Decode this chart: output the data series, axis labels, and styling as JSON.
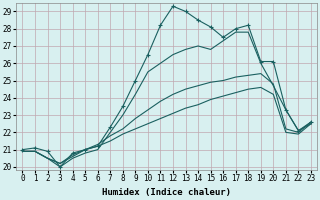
{
  "xlabel": "Humidex (Indice chaleur)",
  "bg_color": "#cce8e8",
  "plot_bg_color": "#d8f0f0",
  "grid_color": "#b8c8c0",
  "line_color": "#1a6060",
  "xlim": [
    -0.5,
    23.5
  ],
  "ylim": [
    19.85,
    29.5
  ],
  "xticks": [
    0,
    1,
    2,
    3,
    4,
    5,
    6,
    7,
    8,
    9,
    10,
    11,
    12,
    13,
    14,
    15,
    16,
    17,
    18,
    19,
    20,
    21,
    22,
    23
  ],
  "yticks": [
    20,
    21,
    22,
    23,
    24,
    25,
    26,
    27,
    28,
    29
  ],
  "series": [
    {
      "x": [
        0,
        1,
        2,
        3,
        4,
        5,
        6,
        7,
        8,
        9,
        10,
        11,
        12,
        13,
        14,
        15,
        16,
        17,
        18,
        19,
        20,
        21,
        22,
        23
      ],
      "y": [
        21.0,
        21.1,
        20.9,
        20.0,
        20.8,
        21.0,
        21.2,
        22.3,
        23.5,
        25.0,
        26.5,
        28.2,
        29.3,
        29.0,
        28.5,
        28.1,
        27.5,
        28.0,
        28.2,
        26.1,
        26.1,
        23.3,
        22.1,
        22.6
      ],
      "has_marker": true
    },
    {
      "x": [
        0,
        1,
        2,
        3,
        4,
        5,
        6,
        7,
        8,
        9,
        10,
        11,
        12,
        13,
        14,
        15,
        16,
        17,
        18,
        19,
        20,
        21,
        22,
        23
      ],
      "y": [
        20.9,
        20.9,
        20.5,
        20.0,
        20.5,
        20.8,
        21.0,
        22.0,
        23.0,
        24.2,
        25.5,
        26.0,
        26.5,
        26.8,
        27.0,
        26.8,
        27.3,
        27.8,
        27.8,
        26.0,
        24.7,
        23.3,
        22.1,
        22.5
      ],
      "has_marker": false
    },
    {
      "x": [
        0,
        1,
        2,
        3,
        4,
        5,
        6,
        7,
        8,
        9,
        10,
        11,
        12,
        13,
        14,
        15,
        16,
        17,
        18,
        19,
        20,
        21,
        22,
        23
      ],
      "y": [
        20.9,
        20.9,
        20.5,
        20.2,
        20.7,
        21.0,
        21.3,
        21.8,
        22.2,
        22.8,
        23.3,
        23.8,
        24.2,
        24.5,
        24.7,
        24.9,
        25.0,
        25.2,
        25.3,
        25.4,
        24.8,
        22.2,
        22.0,
        22.6
      ],
      "has_marker": false
    },
    {
      "x": [
        0,
        1,
        2,
        3,
        4,
        5,
        6,
        7,
        8,
        9,
        10,
        11,
        12,
        13,
        14,
        15,
        16,
        17,
        18,
        19,
        20,
        21,
        22,
        23
      ],
      "y": [
        20.9,
        20.9,
        20.5,
        20.2,
        20.6,
        21.0,
        21.2,
        21.5,
        21.9,
        22.2,
        22.5,
        22.8,
        23.1,
        23.4,
        23.6,
        23.9,
        24.1,
        24.3,
        24.5,
        24.6,
        24.2,
        22.0,
        21.9,
        22.5
      ],
      "has_marker": false
    }
  ],
  "marker_size": 3.5,
  "line_width": 0.8,
  "xlabel_fontsize": 6.5,
  "tick_fontsize": 5.5
}
